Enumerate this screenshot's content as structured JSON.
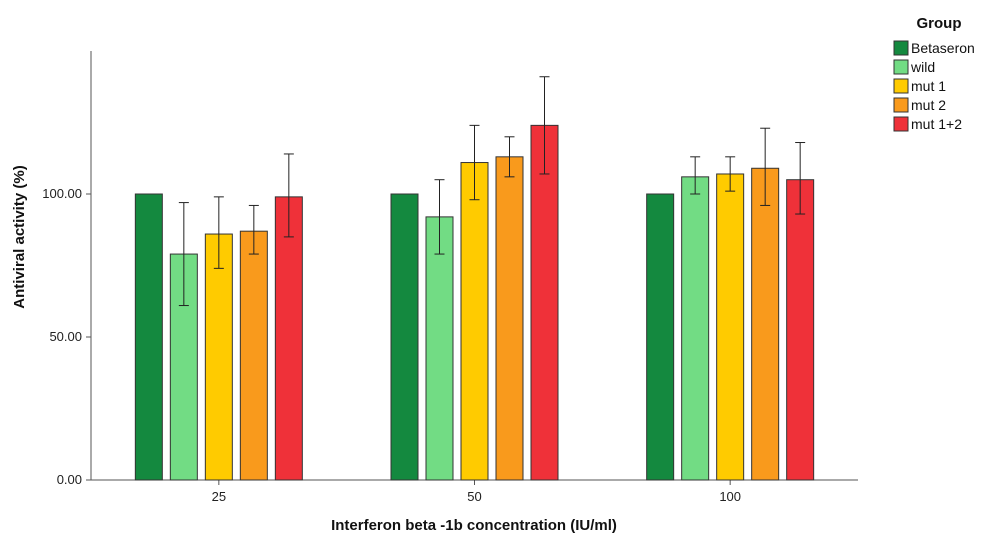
{
  "chart_data": {
    "type": "bar",
    "xlabel": "Interferon beta -1b concentration (IU/ml)",
    "ylabel": "Antiviral activity (%)",
    "ylim": [
      0,
      150
    ],
    "yticks": [
      0,
      50,
      100
    ],
    "ytick_labels": [
      "0.00",
      "50.00",
      "100.00"
    ],
    "categories": [
      "25",
      "50",
      "100"
    ],
    "legend": {
      "title": "Group",
      "placement": "top-right"
    },
    "error_bars": true,
    "grid": false,
    "series": [
      {
        "name": "Betaseron",
        "color": "#14893f",
        "values": [
          100,
          100,
          100
        ],
        "err_low": [
          100,
          100,
          100
        ],
        "err_high": [
          100,
          100,
          100
        ]
      },
      {
        "name": "wild",
        "color": "#72dc84",
        "values": [
          79,
          92,
          106
        ],
        "err_low": [
          61,
          79,
          100
        ],
        "err_high": [
          97,
          105,
          113
        ]
      },
      {
        "name": "mut 1",
        "color": "#ffcb00",
        "values": [
          86,
          111,
          107
        ],
        "err_low": [
          74,
          98,
          101
        ],
        "err_high": [
          99,
          124,
          113
        ]
      },
      {
        "name": "mut 2",
        "color": "#f99a1c",
        "values": [
          87,
          113,
          109
        ],
        "err_low": [
          79,
          106,
          96
        ],
        "err_high": [
          96,
          120,
          123
        ]
      },
      {
        "name": "mut 1+2",
        "color": "#ef3139",
        "values": [
          99,
          124,
          105
        ],
        "err_low": [
          85,
          107,
          93
        ],
        "err_high": [
          114,
          141,
          118
        ]
      }
    ]
  }
}
